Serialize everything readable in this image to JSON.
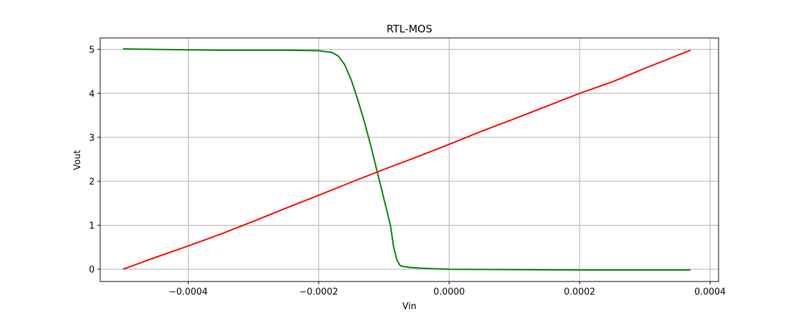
{
  "chart_data": {
    "type": "line",
    "title": "RTL-MOS",
    "xlabel": "Vin",
    "ylabel": "Vout",
    "xlim": [
      -0.000535,
      0.000413
    ],
    "ylim": [
      -0.28,
      5.26
    ],
    "grid": true,
    "x_ticks": [
      -0.0004,
      -0.0002,
      0.0,
      0.0002,
      0.0004
    ],
    "x_tick_labels": [
      "−0.0004",
      "−0.0002",
      "0.0000",
      "0.0002",
      "0.0004"
    ],
    "y_ticks": [
      0,
      1,
      2,
      3,
      4,
      5
    ],
    "y_tick_labels": [
      "0",
      "1",
      "2",
      "3",
      "4",
      "5"
    ],
    "series": [
      {
        "color": "#008000",
        "points": [
          [
            -0.0005,
            5.01
          ],
          [
            -0.00045,
            5.0
          ],
          [
            -0.0004,
            4.99
          ],
          [
            -0.00035,
            4.98
          ],
          [
            -0.0003,
            4.98
          ],
          [
            -0.00025,
            4.98
          ],
          [
            -0.0002,
            4.97
          ],
          [
            -0.00018,
            4.93
          ],
          [
            -0.00017,
            4.85
          ],
          [
            -0.00016,
            4.65
          ],
          [
            -0.00015,
            4.3
          ],
          [
            -0.00014,
            3.85
          ],
          [
            -0.00013,
            3.35
          ],
          [
            -0.00012,
            2.8
          ],
          [
            -0.00011,
            2.2
          ],
          [
            -0.0001,
            1.6
          ],
          [
            -9e-05,
            1.0
          ],
          [
            -8.5e-05,
            0.5
          ],
          [
            -8e-05,
            0.2
          ],
          [
            -7.5e-05,
            0.08
          ],
          [
            -7e-05,
            0.06
          ],
          [
            -6e-05,
            0.04
          ],
          [
            -4e-05,
            0.02
          ],
          [
            0.0,
            0.0
          ],
          [
            0.0001,
            -0.01
          ],
          [
            0.0002,
            -0.02
          ],
          [
            0.0003,
            -0.02
          ],
          [
            0.00037,
            -0.02
          ]
        ]
      },
      {
        "color": "#ff0000",
        "points": [
          [
            -0.0005,
            0.0
          ],
          [
            -0.00045,
            0.27
          ],
          [
            -0.0004,
            0.53
          ],
          [
            -0.00035,
            0.8
          ],
          [
            -0.0003,
            1.09
          ],
          [
            -0.00025,
            1.39
          ],
          [
            -0.0002,
            1.68
          ],
          [
            -0.00015,
            1.98
          ],
          [
            -0.0001,
            2.27
          ],
          [
            -5e-05,
            2.55
          ],
          [
            0.0,
            2.84
          ],
          [
            5e-05,
            3.14
          ],
          [
            0.0001,
            3.42
          ],
          [
            0.00015,
            3.71
          ],
          [
            0.0002,
            4.0
          ],
          [
            0.00025,
            4.26
          ],
          [
            0.0003,
            4.57
          ],
          [
            0.00037,
            4.98
          ]
        ]
      }
    ]
  }
}
